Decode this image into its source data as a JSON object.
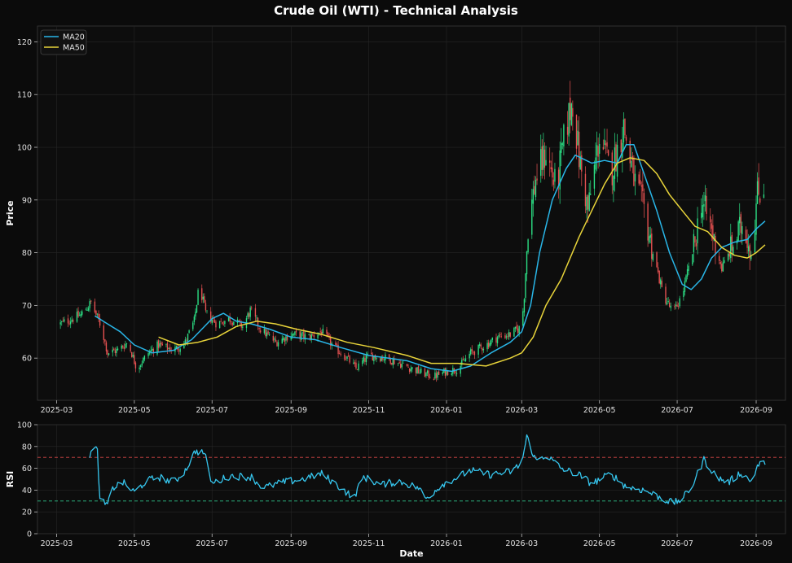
{
  "title": "Crude Oil (WTI) - Technical Analysis",
  "colors": {
    "background": "#0b0b0b",
    "panel": "#0d0d0d",
    "up": "#2ee88a",
    "down": "#f05454",
    "ma20": "#29b6e8",
    "ma50": "#e8d43a",
    "rsi": "#36c6ee",
    "overbought": "#e04a4a",
    "oversold": "#2ec48a"
  },
  "chart_data": [
    {
      "type": "candlestick",
      "title": "Crude Oil (WTI) - Technical Analysis",
      "ylabel": "Price",
      "ylim": [
        52,
        123
      ],
      "yticks": [
        60,
        70,
        80,
        90,
        100,
        110,
        120
      ],
      "xticks": [
        "2025-03",
        "2025-05",
        "2025-07",
        "2025-09",
        "2025-11",
        "2026-01",
        "2026-03",
        "2026-05",
        "2026-07",
        "2026-09"
      ],
      "x_range": [
        "2025-02-14",
        "2026-09-24"
      ],
      "grid": true,
      "legend": {
        "position": "top-left",
        "entries": [
          "MA20",
          "MA50"
        ]
      },
      "close_path": [
        [
          "2025-03-04",
          66.5
        ],
        [
          "2025-03-20",
          68.2
        ],
        [
          "2025-03-28",
          70.5
        ],
        [
          "2025-04-05",
          66.0
        ],
        [
          "2025-04-10",
          61.0
        ],
        [
          "2025-04-18",
          61.5
        ],
        [
          "2025-04-26",
          63.0
        ],
        [
          "2025-05-03",
          58.0
        ],
        [
          "2025-05-12",
          61.0
        ],
        [
          "2025-05-20",
          62.5
        ],
        [
          "2025-06-01",
          61.5
        ],
        [
          "2025-06-10",
          63.0
        ],
        [
          "2025-06-17",
          67.0
        ],
        [
          "2025-06-21",
          74.0
        ],
        [
          "2025-06-26",
          68.5
        ],
        [
          "2025-07-05",
          66.5
        ],
        [
          "2025-07-15",
          67.5
        ],
        [
          "2025-07-25",
          66.0
        ],
        [
          "2025-07-31",
          69.0
        ],
        [
          "2025-08-08",
          65.5
        ],
        [
          "2025-08-20",
          63.0
        ],
        [
          "2025-09-01",
          64.5
        ],
        [
          "2025-09-15",
          64.0
        ],
        [
          "2025-09-25",
          65.0
        ],
        [
          "2025-10-05",
          62.0
        ],
        [
          "2025-10-15",
          60.0
        ],
        [
          "2025-10-22",
          58.0
        ],
        [
          "2025-11-01",
          60.5
        ],
        [
          "2025-11-15",
          60.0
        ],
        [
          "2025-11-25",
          59.0
        ],
        [
          "2025-12-05",
          58.0
        ],
        [
          "2025-12-15",
          57.0
        ],
        [
          "2025-12-22",
          56.5
        ],
        [
          "2026-01-01",
          57.5
        ],
        [
          "2026-01-10",
          58.0
        ],
        [
          "2026-01-20",
          61.0
        ],
        [
          "2026-02-01",
          62.5
        ],
        [
          "2026-02-10",
          64.0
        ],
        [
          "2026-02-20",
          64.5
        ],
        [
          "2026-03-01",
          66.0
        ],
        [
          "2026-03-03",
          72.0
        ],
        [
          "2026-03-06",
          85.0
        ],
        [
          "2026-03-12",
          94.0
        ],
        [
          "2026-03-20",
          99.0
        ],
        [
          "2026-03-28",
          92.0
        ],
        [
          "2026-04-05",
          104.0
        ],
        [
          "2026-04-10",
          109.0
        ],
        [
          "2026-04-15",
          98.0
        ],
        [
          "2026-04-22",
          88.0
        ],
        [
          "2026-05-01",
          102.0
        ],
        [
          "2026-05-10",
          95.0
        ],
        [
          "2026-05-20",
          104.0
        ],
        [
          "2026-05-28",
          94.0
        ],
        [
          "2026-06-05",
          88.0
        ],
        [
          "2026-06-12",
          80.0
        ],
        [
          "2026-06-20",
          72.0
        ],
        [
          "2026-06-28",
          68.5
        ],
        [
          "2026-07-05",
          72.0
        ],
        [
          "2026-07-15",
          82.0
        ],
        [
          "2026-07-20",
          90.0
        ],
        [
          "2026-07-27",
          85.0
        ],
        [
          "2026-08-05",
          77.0
        ],
        [
          "2026-08-15",
          82.0
        ],
        [
          "2026-08-22",
          86.0
        ],
        [
          "2026-08-28",
          80.0
        ],
        [
          "2026-09-02",
          91.0
        ],
        [
          "2026-09-07",
          92.5
        ]
      ],
      "series": [
        {
          "name": "MA20",
          "points": [
            [
              "2025-03-31",
              68.0
            ],
            [
              "2025-04-10",
              66.5
            ],
            [
              "2025-04-20",
              65.0
            ],
            [
              "2025-05-01",
              62.5
            ],
            [
              "2025-05-15",
              61.0
            ],
            [
              "2025-06-01",
              61.5
            ],
            [
              "2025-06-15",
              63.5
            ],
            [
              "2025-07-01",
              67.5
            ],
            [
              "2025-07-10",
              68.5
            ],
            [
              "2025-07-20",
              67.0
            ],
            [
              "2025-08-01",
              66.5
            ],
            [
              "2025-08-15",
              65.5
            ],
            [
              "2025-09-01",
              64.0
            ],
            [
              "2025-09-20",
              63.5
            ],
            [
              "2025-10-10",
              62.0
            ],
            [
              "2025-11-01",
              60.5
            ],
            [
              "2025-12-01",
              59.5
            ],
            [
              "2025-12-20",
              58.0
            ],
            [
              "2026-01-05",
              57.5
            ],
            [
              "2026-01-20",
              58.5
            ],
            [
              "2026-02-05",
              61.0
            ],
            [
              "2026-02-20",
              63.0
            ],
            [
              "2026-03-01",
              65.0
            ],
            [
              "2026-03-08",
              70.0
            ],
            [
              "2026-03-15",
              80.0
            ],
            [
              "2026-03-25",
              90.0
            ],
            [
              "2026-04-05",
              96.0
            ],
            [
              "2026-04-12",
              98.5
            ],
            [
              "2026-04-25",
              97.0
            ],
            [
              "2026-05-05",
              97.5
            ],
            [
              "2026-05-15",
              97.0
            ],
            [
              "2026-05-22",
              100.5
            ],
            [
              "2026-05-28",
              100.5
            ],
            [
              "2026-06-05",
              95.0
            ],
            [
              "2026-06-15",
              88.0
            ],
            [
              "2026-06-25",
              80.0
            ],
            [
              "2026-07-05",
              74.0
            ],
            [
              "2026-07-12",
              73.0
            ],
            [
              "2026-07-20",
              75.0
            ],
            [
              "2026-07-28",
              79.0
            ],
            [
              "2026-08-05",
              81.0
            ],
            [
              "2026-08-15",
              82.0
            ],
            [
              "2026-08-25",
              82.5
            ],
            [
              "2026-09-01",
              84.5
            ],
            [
              "2026-09-08",
              86.0
            ]
          ]
        },
        {
          "name": "MA50",
          "points": [
            [
              "2025-05-20",
              64.0
            ],
            [
              "2025-06-05",
              62.5
            ],
            [
              "2025-06-20",
              63.0
            ],
            [
              "2025-07-05",
              64.0
            ],
            [
              "2025-07-20",
              66.0
            ],
            [
              "2025-08-05",
              67.0
            ],
            [
              "2025-08-20",
              66.5
            ],
            [
              "2025-09-05",
              65.5
            ],
            [
              "2025-09-25",
              64.5
            ],
            [
              "2025-10-15",
              63.0
            ],
            [
              "2025-11-05",
              62.0
            ],
            [
              "2025-12-01",
              60.5
            ],
            [
              "2025-12-20",
              59.0
            ],
            [
              "2026-01-10",
              59.0
            ],
            [
              "2026-02-01",
              58.5
            ],
            [
              "2026-02-20",
              60.0
            ],
            [
              "2026-03-01",
              61.0
            ],
            [
              "2026-03-10",
              64.0
            ],
            [
              "2026-03-20",
              70.0
            ],
            [
              "2026-04-01",
              75.0
            ],
            [
              "2026-04-15",
              83.0
            ],
            [
              "2026-04-25",
              88.0
            ],
            [
              "2026-05-05",
              93.0
            ],
            [
              "2026-05-15",
              97.0
            ],
            [
              "2026-05-25",
              98.0
            ],
            [
              "2026-06-05",
              97.5
            ],
            [
              "2026-06-15",
              95.0
            ],
            [
              "2026-06-25",
              91.0
            ],
            [
              "2026-07-05",
              88.0
            ],
            [
              "2026-07-15",
              85.0
            ],
            [
              "2026-07-25",
              84.0
            ],
            [
              "2026-08-05",
              81.0
            ],
            [
              "2026-08-15",
              79.5
            ],
            [
              "2026-08-25",
              79.0
            ],
            [
              "2026-09-01",
              80.0
            ],
            [
              "2026-09-08",
              81.5
            ]
          ]
        }
      ]
    },
    {
      "type": "line",
      "ylabel": "RSI",
      "xlabel": "Date",
      "ylim": [
        0,
        100
      ],
      "yticks": [
        0,
        20,
        40,
        60,
        80,
        100
      ],
      "xticks": [
        "2025-03",
        "2025-05",
        "2025-07",
        "2025-09",
        "2025-11",
        "2026-01",
        "2026-03",
        "2026-05",
        "2026-07",
        "2026-09"
      ],
      "reference_lines": [
        {
          "value": 70,
          "style": "dashed",
          "color": "#e04a4a"
        },
        {
          "value": 30,
          "style": "dashed",
          "color": "#2ec48a"
        }
      ],
      "series": [
        {
          "name": "RSI",
          "points": [
            [
              "2025-03-27",
              72
            ],
            [
              "2025-03-30",
              79
            ],
            [
              "2025-04-02",
              76
            ],
            [
              "2025-04-04",
              30
            ],
            [
              "2025-04-10",
              26
            ],
            [
              "2025-04-14",
              42
            ],
            [
              "2025-04-22",
              47
            ],
            [
              "2025-05-01",
              38
            ],
            [
              "2025-05-10",
              48
            ],
            [
              "2025-05-20",
              52
            ],
            [
              "2025-06-01",
              47
            ],
            [
              "2025-06-10",
              58
            ],
            [
              "2025-06-18",
              76
            ],
            [
              "2025-06-25",
              74
            ],
            [
              "2025-07-01",
              46
            ],
            [
              "2025-07-15",
              53
            ],
            [
              "2025-08-01",
              52
            ],
            [
              "2025-08-10",
              42
            ],
            [
              "2025-08-25",
              47
            ],
            [
              "2025-09-10",
              50
            ],
            [
              "2025-09-25",
              55
            ],
            [
              "2025-10-10",
              42
            ],
            [
              "2025-10-20",
              33
            ],
            [
              "2025-10-28",
              52
            ],
            [
              "2025-11-10",
              45
            ],
            [
              "2025-11-25",
              48
            ],
            [
              "2025-12-10",
              42
            ],
            [
              "2025-12-16",
              32
            ],
            [
              "2025-12-28",
              45
            ],
            [
              "2026-01-10",
              52
            ],
            [
              "2026-01-20",
              58
            ],
            [
              "2026-02-05",
              54
            ],
            [
              "2026-02-20",
              57
            ],
            [
              "2026-03-01",
              64
            ],
            [
              "2026-03-05",
              89
            ],
            [
              "2026-03-12",
              67
            ],
            [
              "2026-03-20",
              72
            ],
            [
              "2026-04-01",
              60
            ],
            [
              "2026-04-15",
              54
            ],
            [
              "2026-04-25",
              46
            ],
            [
              "2026-05-10",
              55
            ],
            [
              "2026-05-22",
              43
            ],
            [
              "2026-06-05",
              40
            ],
            [
              "2026-06-18",
              33
            ],
            [
              "2026-06-28",
              28
            ],
            [
              "2026-07-05",
              32
            ],
            [
              "2026-07-12",
              42
            ],
            [
              "2026-07-22",
              68
            ],
            [
              "2026-08-01",
              52
            ],
            [
              "2026-08-10",
              47
            ],
            [
              "2026-08-20",
              56
            ],
            [
              "2026-08-28",
              48
            ],
            [
              "2026-09-02",
              62
            ],
            [
              "2026-09-08",
              66
            ]
          ]
        }
      ]
    }
  ]
}
